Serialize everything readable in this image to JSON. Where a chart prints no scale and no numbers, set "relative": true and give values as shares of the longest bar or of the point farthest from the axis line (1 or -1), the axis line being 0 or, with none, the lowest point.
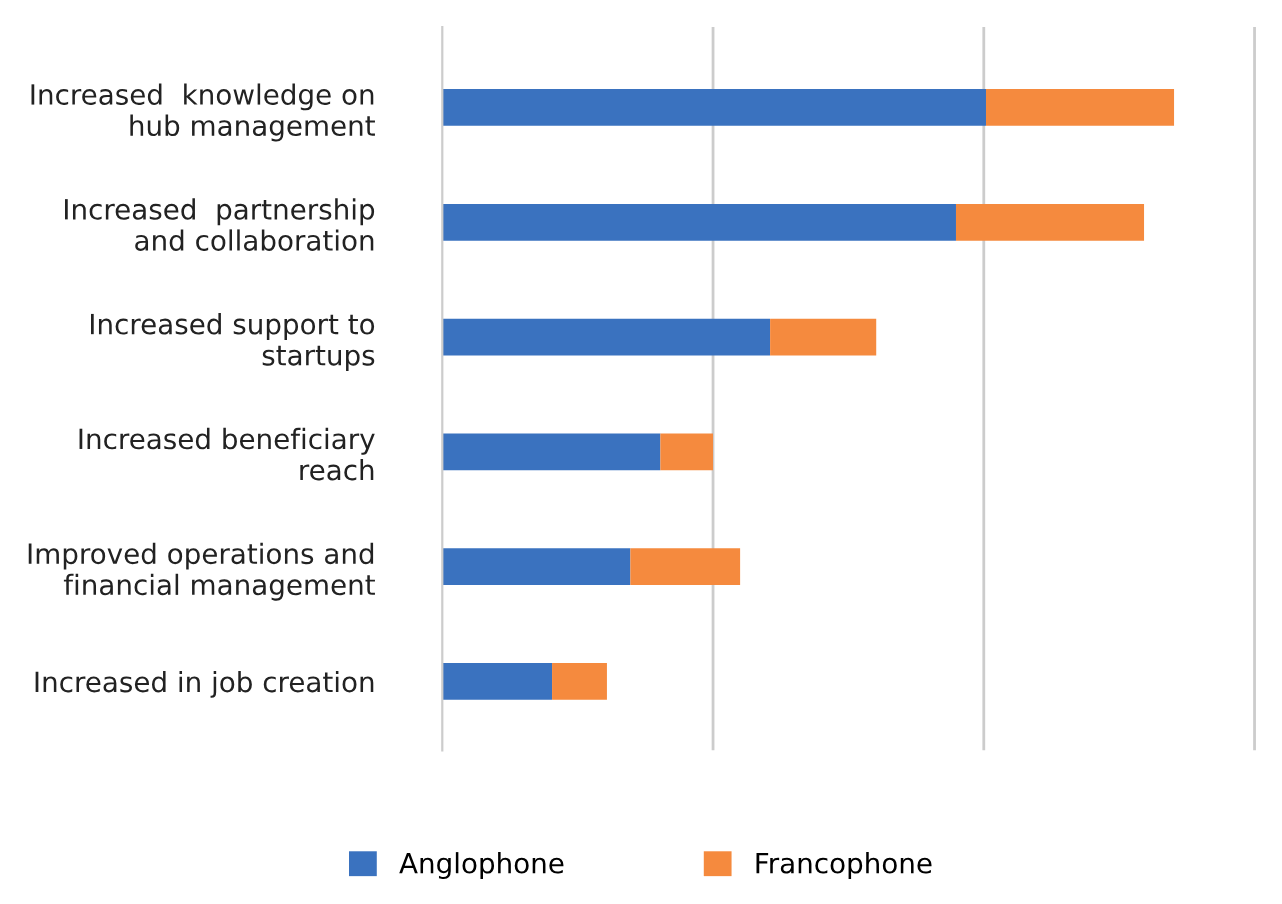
{
  "chart_data": {
    "type": "bar",
    "orientation": "horizontal",
    "stacked": true,
    "relative": true,
    "legend": "bottom",
    "ref_lines": [
      {
        "axis": "x",
        "value": 0.37,
        "color": "#cccccc"
      },
      {
        "axis": "x",
        "value": 0.74,
        "color": "#cccccc"
      },
      {
        "axis": "x",
        "value": 1.11,
        "color": "#cccccc"
      }
    ],
    "categories": [
      "Increased  knowledge on\nhub management",
      "Increased  partnership\nand collaboration",
      "Increased support to\nstartups",
      "Increased beneficiary\nreach",
      "Improved operations and\nfinancial management",
      "Increased in job creation"
    ],
    "series": [
      {
        "name": "Anglophone",
        "color": "#3a72bf",
        "values": [
          0.743,
          0.702,
          0.448,
          0.298,
          0.257,
          0.15
        ]
      },
      {
        "name": "Francophone",
        "color": "#f58a3e",
        "values": [
          0.257,
          0.257,
          0.145,
          0.072,
          0.15,
          0.075
        ]
      }
    ]
  }
}
